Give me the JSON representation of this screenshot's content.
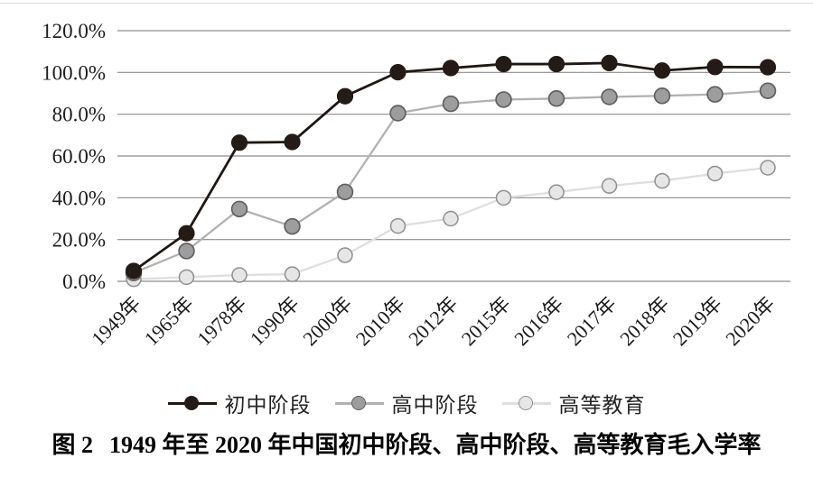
{
  "figure": {
    "caption_label": "图 2",
    "caption_text": "1949 年至 2020 年中国初中阶段、高中阶段、高等教育毛入学率"
  },
  "legend": {
    "items": [
      {
        "label": "初中阶段"
      },
      {
        "label": "高中阶段"
      },
      {
        "label": "高等教育"
      }
    ]
  },
  "chart_data": {
    "type": "line",
    "title": "",
    "xlabel": "",
    "ylabel": "",
    "ylim": [
      0,
      120
    ],
    "grid": true,
    "legend_position": "bottom",
    "y_ticks": [
      "0.0%",
      "20.0%",
      "40.0%",
      "60.0%",
      "80.0%",
      "100.0%",
      "120.0%"
    ],
    "categories": [
      "1949年",
      "1965年",
      "1978年",
      "1990年",
      "2000年",
      "2010年",
      "2012年",
      "2015年",
      "2016年",
      "2017年",
      "2018年",
      "2019年",
      "2020年"
    ],
    "series": [
      {
        "id": "junior-secondary",
        "name": "初中阶段",
        "values": [
          5.0,
          23.0,
          66.4,
          66.7,
          88.6,
          100.1,
          102.1,
          104.0,
          104.0,
          104.5,
          100.9,
          102.6,
          102.5
        ],
        "line_color": "#1f1713",
        "marker_fill": "#241a16",
        "marker_stroke": "#241a16",
        "line_width": 2.8,
        "marker_radius": 8.6,
        "marker_stroke_width": 1.0
      },
      {
        "id": "senior-secondary",
        "name": "高中阶段",
        "values": [
          4.0,
          14.5,
          34.6,
          26.3,
          42.8,
          80.5,
          85.0,
          87.0,
          87.5,
          88.3,
          88.8,
          89.5,
          91.2
        ],
        "line_color": "#b1b1b1",
        "marker_fill": "#9d9d9d",
        "marker_stroke": "#606060",
        "line_width": 2.3,
        "marker_radius": 8.4,
        "marker_stroke_width": 1.7
      },
      {
        "id": "higher-education",
        "name": "高等教育",
        "values": [
          1.0,
          2.0,
          3.0,
          3.4,
          12.5,
          26.5,
          30.0,
          40.0,
          42.7,
          45.7,
          48.1,
          51.6,
          54.4
        ],
        "line_color": "#dedede",
        "marker_fill": "#e6e6e6",
        "marker_stroke": "#8f8f8f",
        "line_width": 2.3,
        "marker_radius": 8.0,
        "marker_stroke_width": 1.5
      }
    ],
    "colors": {
      "grid": "#8c8c8c",
      "text": "#1c1c1c"
    }
  }
}
